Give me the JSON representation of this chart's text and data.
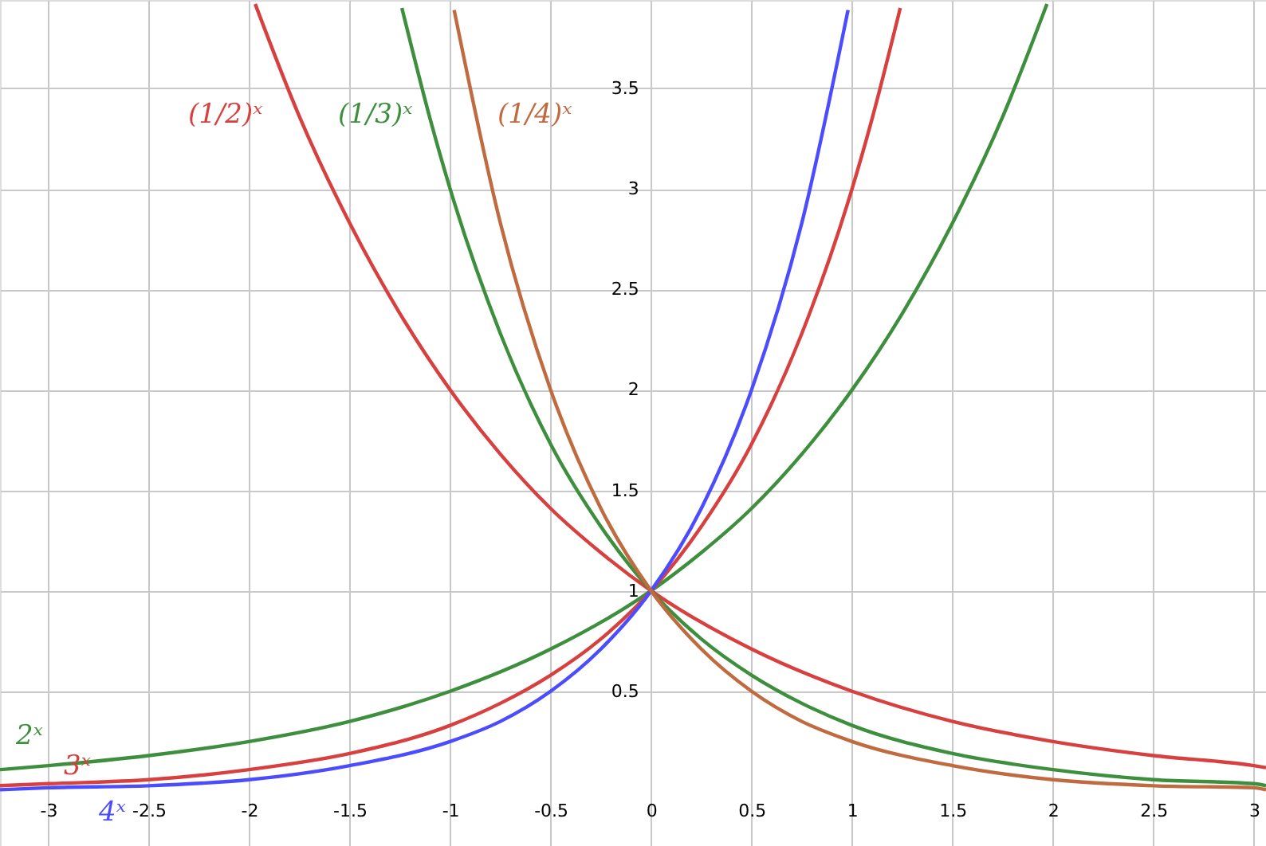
{
  "chart_data": {
    "type": "line",
    "xlim": [
      -3.24,
      3.06
    ],
    "ylim": [
      -0.27,
      3.94
    ],
    "xticks": [
      -3,
      -2.5,
      -2,
      -1.5,
      -1,
      -0.5,
      0,
      0.5,
      1,
      1.5,
      2,
      2.5,
      3
    ],
    "yticks": [
      0.5,
      1,
      1.5,
      2,
      2.5,
      3,
      3.5
    ],
    "grid": true,
    "line_style": "solid",
    "marker": "none",
    "series": [
      {
        "name": "2ˣ",
        "color": "#3d8f3d",
        "x": [
          -3.24,
          -3,
          -2.5,
          -2,
          -1.5,
          -1,
          -0.5,
          0,
          0.25,
          0.5,
          0.75,
          1,
          1.25,
          1.5,
          1.75,
          1.97
        ],
        "values": [
          0.11,
          0.13,
          0.18,
          0.25,
          0.35,
          0.5,
          0.71,
          1,
          1.19,
          1.41,
          1.68,
          2,
          2.38,
          2.83,
          3.36,
          3.92
        ]
      },
      {
        "name": "3ˣ",
        "color": "#d84040",
        "x": [
          -3.24,
          -3,
          -2.5,
          -2,
          -1.5,
          -1,
          -0.75,
          -0.5,
          -0.25,
          0,
          0.25,
          0.5,
          0.75,
          1,
          1.1,
          1.24
        ],
        "values": [
          0.03,
          0.04,
          0.06,
          0.11,
          0.19,
          0.33,
          0.44,
          0.58,
          0.76,
          1,
          1.32,
          1.73,
          2.28,
          3,
          3.35,
          3.9
        ]
      },
      {
        "name": "4ˣ",
        "color": "#4c4cff",
        "x": [
          -3.24,
          -3,
          -2.5,
          -2,
          -1.5,
          -1,
          -0.75,
          -0.5,
          -0.25,
          0,
          0.25,
          0.5,
          0.75,
          0.98
        ],
        "values": [
          0.01,
          0.02,
          0.03,
          0.06,
          0.13,
          0.25,
          0.35,
          0.5,
          0.71,
          1,
          1.41,
          2,
          2.83,
          3.89
        ]
      },
      {
        "name": "(1/2)ˣ",
        "color": "#d84040",
        "x": [
          -1.97,
          -1.75,
          -1.5,
          -1.25,
          -1,
          -0.75,
          -0.5,
          -0.25,
          0,
          0.5,
          1,
          1.5,
          2,
          2.5,
          3,
          3.06
        ],
        "values": [
          3.92,
          3.36,
          2.83,
          2.38,
          2,
          1.68,
          1.41,
          1.19,
          1,
          0.71,
          0.5,
          0.35,
          0.25,
          0.18,
          0.13,
          0.12
        ]
      },
      {
        "name": "(1/3)ˣ",
        "color": "#3d8f3d",
        "x": [
          -1.24,
          -1.1,
          -1,
          -0.75,
          -0.5,
          -0.25,
          0,
          0.25,
          0.5,
          0.75,
          1,
          1.5,
          2,
          2.5,
          3,
          3.06
        ],
        "values": [
          3.9,
          3.35,
          3,
          2.28,
          1.73,
          1.32,
          1,
          0.76,
          0.58,
          0.44,
          0.33,
          0.19,
          0.11,
          0.06,
          0.04,
          0.03
        ]
      },
      {
        "name": "(1/4)ˣ",
        "color": "#c06a3f",
        "x": [
          -0.98,
          -0.75,
          -0.5,
          -0.25,
          0,
          0.25,
          0.5,
          0.75,
          1,
          1.5,
          2,
          2.5,
          3,
          3.06
        ],
        "values": [
          3.89,
          2.83,
          2,
          1.41,
          1,
          0.71,
          0.5,
          0.35,
          0.25,
          0.13,
          0.06,
          0.03,
          0.02,
          0.01
        ]
      }
    ]
  }
}
